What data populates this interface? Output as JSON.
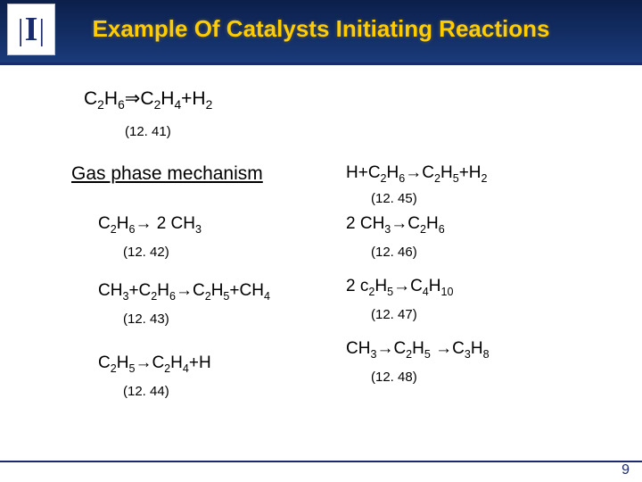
{
  "title": "Example Of Catalysts Initiating Reactions",
  "logo_letter": "I",
  "page_number": "9",
  "colors": {
    "band_top": "#0b1f4a",
    "band_bottom": "#1a3a7a",
    "title_color": "#ffcc00",
    "accent": "#1a2a6b",
    "text": "#000000",
    "background": "#ffffff"
  },
  "top_equation": {
    "html": "C<sub>2</sub>H<sub>6</sub><span class='arrow'>&#8658;</span>C<sub>2</sub>H<sub>4</sub>+H<sub>2</sub>",
    "number": "(12. 41)"
  },
  "section_label": "Gas phase mechanism",
  "left_equations": [
    {
      "html": "C<sub>2</sub>H<sub>6</sub><span class='arrow'>&#8594;</span> 2 CH<sub>3</sub>",
      "number": "(12. 42)"
    },
    {
      "html": "CH<sub>3</sub>+C<sub>2</sub>H<sub>6</sub><span class='arrow'>&#8594;</span>C<sub>2</sub>H<sub>5</sub>+CH<sub>4</sub>",
      "number": "(12. 43)"
    },
    {
      "html": "C<sub>2</sub>H<sub>5</sub><span class='arrow'>&#8594;</span>C<sub>2</sub>H<sub>4</sub>+H",
      "number": "(12. 44)"
    }
  ],
  "right_equations": [
    {
      "html": "H+C<sub>2</sub>H<sub>6</sub><span class='arrow'>&#8594;</span>C<sub>2</sub>H<sub>5</sub>+H<sub>2</sub>",
      "number": "(12. 45)"
    },
    {
      "html": "2 CH<sub>3</sub><span class='arrow'>&#8594;</span>C<sub>2</sub>H<sub>6</sub>",
      "number": "(12. 46)"
    },
    {
      "html": "2 c<sub>2</sub>H<sub>5</sub><span class='arrow'>&#8594;</span>C<sub>4</sub>H<sub>10</sub>",
      "number": "(12. 47)"
    },
    {
      "html": "CH<sub>3</sub><span class='arrow'>&#8594;</span>C<sub>2</sub>H<sub>5</sub> <span class='arrow'>&#8594;</span>C<sub>3</sub>H<sub>8</sub>",
      "number": "(12. 48)"
    }
  ]
}
